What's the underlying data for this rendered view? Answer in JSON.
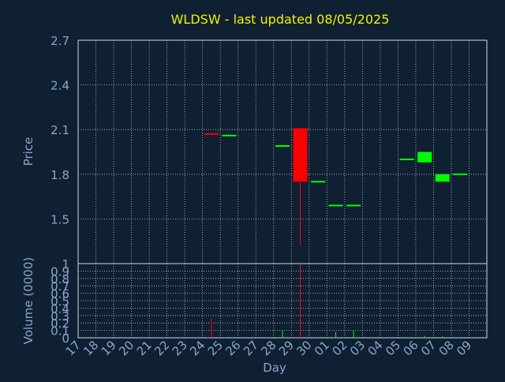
{
  "title": "WLDSW - last updated 08/05/2025",
  "colors": {
    "background": "#0f2033",
    "title": "#f2f200",
    "axis_text": "#8aa6c8",
    "grid": "#ffffff",
    "up": "#00ff00",
    "down": "#ff0000"
  },
  "chart_data": [
    {
      "type": "candlestick",
      "ylabel": "Price",
      "ylim": [
        1.2,
        2.7
      ],
      "yticks": [
        "2.7",
        "2.4",
        "2.1",
        "1.8",
        "1.5"
      ],
      "ytick_values": [
        2.7,
        2.4,
        2.1,
        1.8,
        1.5
      ],
      "grid": true,
      "x": [
        "17",
        "18",
        "19",
        "20",
        "21",
        "22",
        "23",
        "24",
        "25",
        "26",
        "27",
        "28",
        "29",
        "30",
        "01",
        "02",
        "03",
        "04",
        "05",
        "06",
        "07",
        "08",
        "09"
      ],
      "candles": [
        {
          "day": "24",
          "open": 2.07,
          "high": 2.07,
          "low": 2.06,
          "close": 2.06,
          "direction": "down"
        },
        {
          "day": "25",
          "open": 2.06,
          "high": 2.06,
          "low": 2.06,
          "close": 2.06,
          "direction": "up"
        },
        {
          "day": "28",
          "open": 1.99,
          "high": 1.99,
          "low": 1.99,
          "close": 1.99,
          "direction": "up"
        },
        {
          "day": "29",
          "open": 2.11,
          "high": 2.11,
          "low": 1.32,
          "close": 1.75,
          "direction": "down"
        },
        {
          "day": "30",
          "open": 1.75,
          "high": 1.75,
          "low": 1.75,
          "close": 1.75,
          "direction": "up"
        },
        {
          "day": "01",
          "open": 1.59,
          "high": 1.59,
          "low": 1.59,
          "close": 1.59,
          "direction": "up"
        },
        {
          "day": "02",
          "open": 1.59,
          "high": 1.59,
          "low": 1.59,
          "close": 1.59,
          "direction": "up"
        },
        {
          "day": "05",
          "open": 1.9,
          "high": 1.9,
          "low": 1.9,
          "close": 1.9,
          "direction": "up"
        },
        {
          "day": "06",
          "open": 1.88,
          "high": 1.95,
          "low": 1.88,
          "close": 1.95,
          "direction": "up"
        },
        {
          "day": "07",
          "open": 1.75,
          "high": 1.8,
          "low": 1.75,
          "close": 1.8,
          "direction": "up"
        },
        {
          "day": "08",
          "open": 1.8,
          "high": 1.8,
          "low": 1.8,
          "close": 1.8,
          "direction": "up"
        }
      ]
    },
    {
      "type": "bar",
      "xlabel": "Day",
      "ylabel": "Volume (0000)",
      "ylim": [
        0,
        1
      ],
      "yticks": [
        "1",
        "0.9",
        "0.8",
        "0.7",
        "0.6",
        "0.5",
        "0.4",
        "0.3",
        "0.2",
        "0.1",
        "0"
      ],
      "ytick_values": [
        1,
        0.9,
        0.8,
        0.7,
        0.6,
        0.5,
        0.4,
        0.3,
        0.2,
        0.1,
        0
      ],
      "grid": true,
      "categories": [
        "17",
        "18",
        "19",
        "20",
        "21",
        "22",
        "23",
        "24",
        "25",
        "26",
        "27",
        "28",
        "29",
        "30",
        "01",
        "02",
        "03",
        "04",
        "05",
        "06",
        "07",
        "08",
        "09"
      ],
      "bars": [
        {
          "day": "24",
          "value": 0.27,
          "direction": "down"
        },
        {
          "day": "25",
          "value": 0.01,
          "direction": "up"
        },
        {
          "day": "28",
          "value": 0.1,
          "direction": "up"
        },
        {
          "day": "29",
          "value": 1.0,
          "direction": "down"
        },
        {
          "day": "30",
          "value": 0.01,
          "direction": "up"
        },
        {
          "day": "01",
          "value": 0.08,
          "direction": "up"
        },
        {
          "day": "02",
          "value": 0.1,
          "direction": "up"
        },
        {
          "day": "05",
          "value": 0.01,
          "direction": "up"
        },
        {
          "day": "06",
          "value": 0.03,
          "direction": "up"
        },
        {
          "day": "07",
          "value": 0.02,
          "direction": "up"
        },
        {
          "day": "08",
          "value": 0.01,
          "direction": "up"
        }
      ]
    }
  ]
}
